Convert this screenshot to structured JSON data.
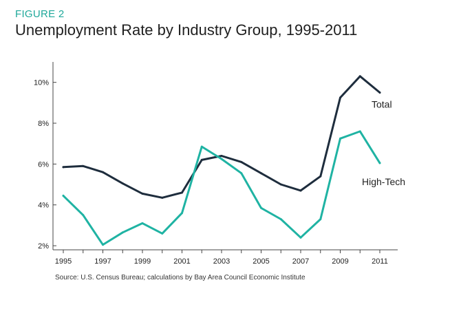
{
  "figure_label": "FIGURE 2",
  "source": "Source: U.S. Census Bureau; calculations by Bay Area Council Economic Institute",
  "colors": {
    "accent": "#1fa89a",
    "total": "#1e2d3d",
    "high_tech": "#1fb3a3",
    "axis": "#444444"
  },
  "chart_data": {
    "type": "line",
    "title": "Unemployment Rate by Industry Group, 1995-2011",
    "xlabel": "",
    "ylabel": "",
    "x": [
      1995,
      1996,
      1997,
      1998,
      1999,
      2000,
      2001,
      2002,
      2003,
      2004,
      2005,
      2006,
      2007,
      2008,
      2009,
      2010,
      2011
    ],
    "x_ticks": [
      "1995",
      "1997",
      "1999",
      "2001",
      "2003",
      "2005",
      "2007",
      "2009",
      "2011"
    ],
    "y_ticks": [
      "2%",
      "4%",
      "6%",
      "8%",
      "10%"
    ],
    "ylim": [
      1.8,
      11
    ],
    "grid": false,
    "series": [
      {
        "name": "Total",
        "values": [
          5.85,
          5.9,
          5.6,
          5.05,
          4.55,
          4.35,
          4.6,
          6.2,
          6.4,
          6.1,
          5.55,
          5.0,
          4.7,
          5.4,
          9.25,
          10.3,
          9.5
        ]
      },
      {
        "name": "High-Tech",
        "values": [
          4.45,
          3.5,
          2.05,
          2.65,
          3.1,
          2.6,
          3.6,
          6.85,
          6.25,
          5.55,
          3.85,
          3.3,
          2.4,
          3.3,
          7.25,
          7.6,
          6.05
        ]
      }
    ]
  }
}
